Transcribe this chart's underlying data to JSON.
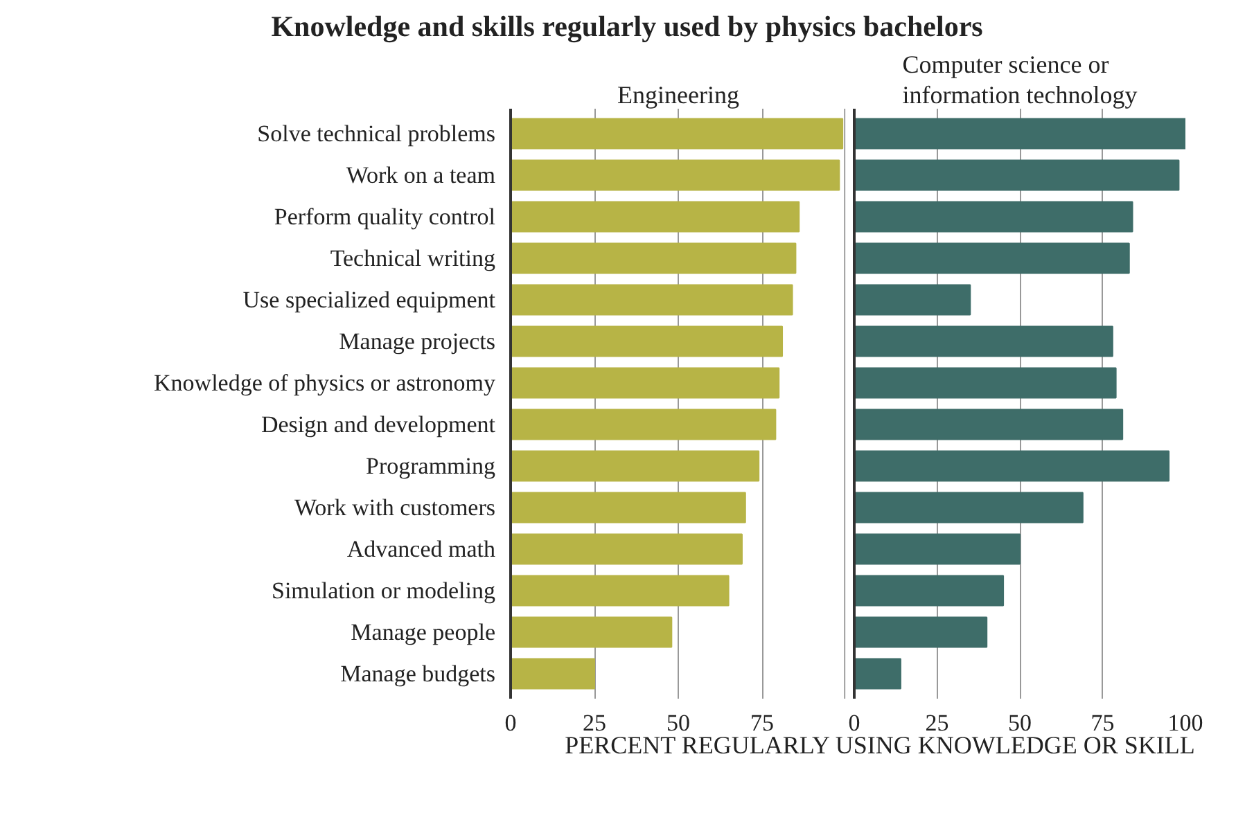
{
  "chart_data": [
    {
      "type": "bar",
      "orientation": "horizontal",
      "title": "Knowledge and skills regularly used by physics bachelors",
      "subtitle": "Engineering",
      "categories": [
        "Solve technical problems",
        "Work on a team",
        "Perform quality control",
        "Technical writing",
        "Use specialized equipment",
        "Manage projects",
        "Knowledge of physics or astronomy",
        "Design and development",
        "Programming",
        "Work with customers",
        "Advanced math",
        "Simulation or modeling",
        "Manage people",
        "Manage budgets"
      ],
      "values": [
        99,
        98,
        86,
        85,
        84,
        81,
        80,
        79,
        74,
        70,
        69,
        65,
        48,
        25
      ],
      "color": "#b7b446",
      "xlim": [
        0,
        100
      ],
      "xticks": [
        0,
        25,
        50,
        75,
        {
          "value": 100,
          "label": null
        }
      ],
      "grid": "x"
    },
    {
      "type": "bar",
      "orientation": "horizontal",
      "subtitle": "Computer science or information technology",
      "xlabel": "PERCENT REGULARLY USING KNOWLEDGE OR SKILL",
      "categories": [
        "Solve technical problems",
        "Work on a team",
        "Perform quality control",
        "Technical writing",
        "Use specialized equipment",
        "Manage projects",
        "Knowledge of physics or astronomy",
        "Design and development",
        "Programming",
        "Work with customers",
        "Advanced math",
        "Simulation or modeling",
        "Manage people",
        "Manage budgets"
      ],
      "values": [
        100,
        98,
        84,
        83,
        35,
        78,
        79,
        81,
        95,
        69,
        50,
        45,
        40,
        14
      ],
      "color": "#3e6d69",
      "xlim": [
        0,
        100
      ],
      "xticks": [
        0,
        25,
        50,
        75,
        100
      ],
      "grid": "x",
      "tick_labels": "x"
    }
  ]
}
